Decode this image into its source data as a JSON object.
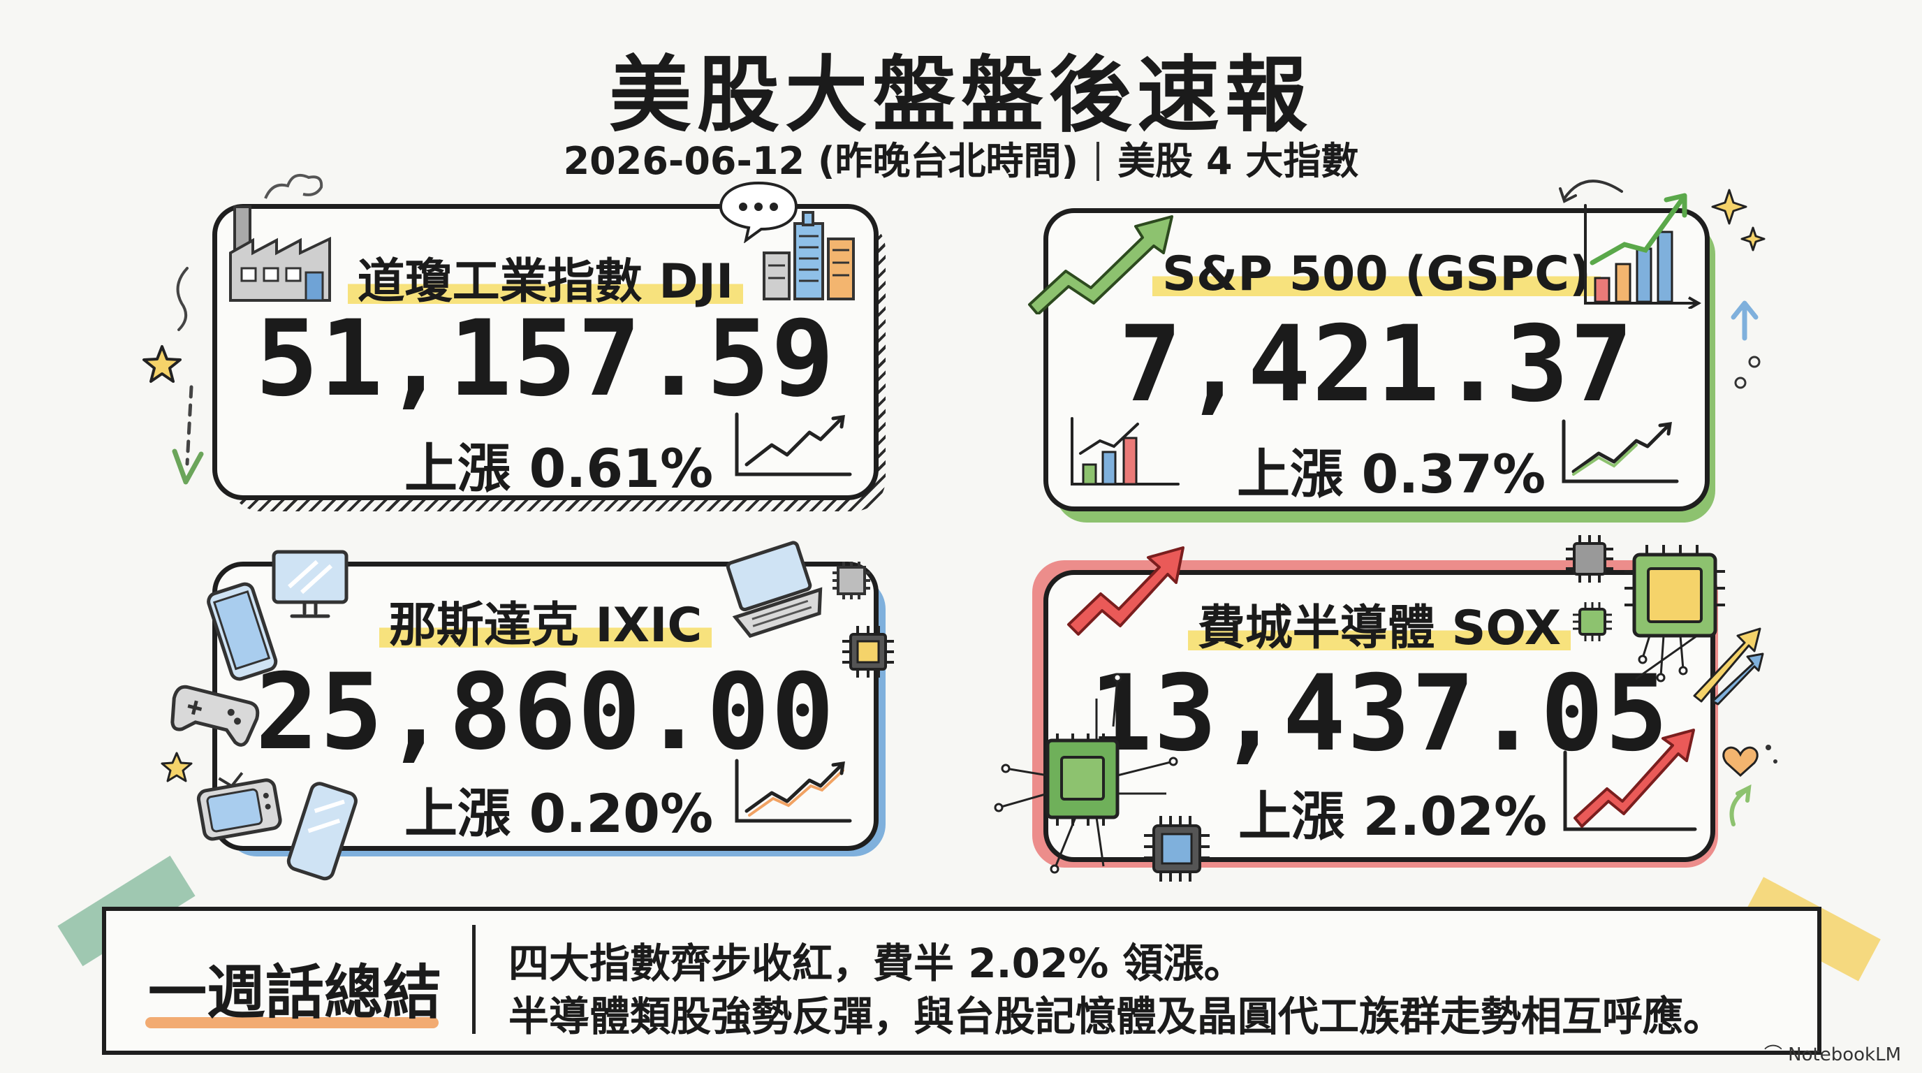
{
  "header": {
    "title": "美股大盤盤後速報",
    "subtitle_date": "2026-06-12 (昨晚台北時間)",
    "subtitle_topic": "美股 4 大指數"
  },
  "cards": [
    {
      "name": "道瓊工業指數 DJI",
      "value": "51,157.59",
      "change": "上漲 0.61%",
      "accent": "#1e1e1e"
    },
    {
      "name": "S&P 500 (GSPC)",
      "value": "7,421.37",
      "change": "上漲 0.37%",
      "accent": "#8dc26f"
    },
    {
      "name": "那斯達克 IXIC",
      "value": "25,860.00",
      "change": "上漲 0.20%",
      "accent": "#7fb0dc"
    },
    {
      "name": "費城半導體 SOX",
      "value": "13,437.05",
      "change": "上漲 2.02%",
      "accent": "#ea7a78"
    }
  ],
  "summary": {
    "label": "一週話總結",
    "line1": "四大指數齊步收紅，費半 2.02% 領漲。",
    "line2": "半導體類股強勢反彈，與台股記憶體及晶圓代工族群走勢相互呼應。"
  },
  "watermark": "NotebookLM",
  "colors": {
    "background": "#f7f7f4",
    "highlight": "#f7e27d",
    "green": "#8dc26f",
    "blue": "#7fb0dc",
    "red": "#ea7a78",
    "orange": "#f1a263"
  }
}
